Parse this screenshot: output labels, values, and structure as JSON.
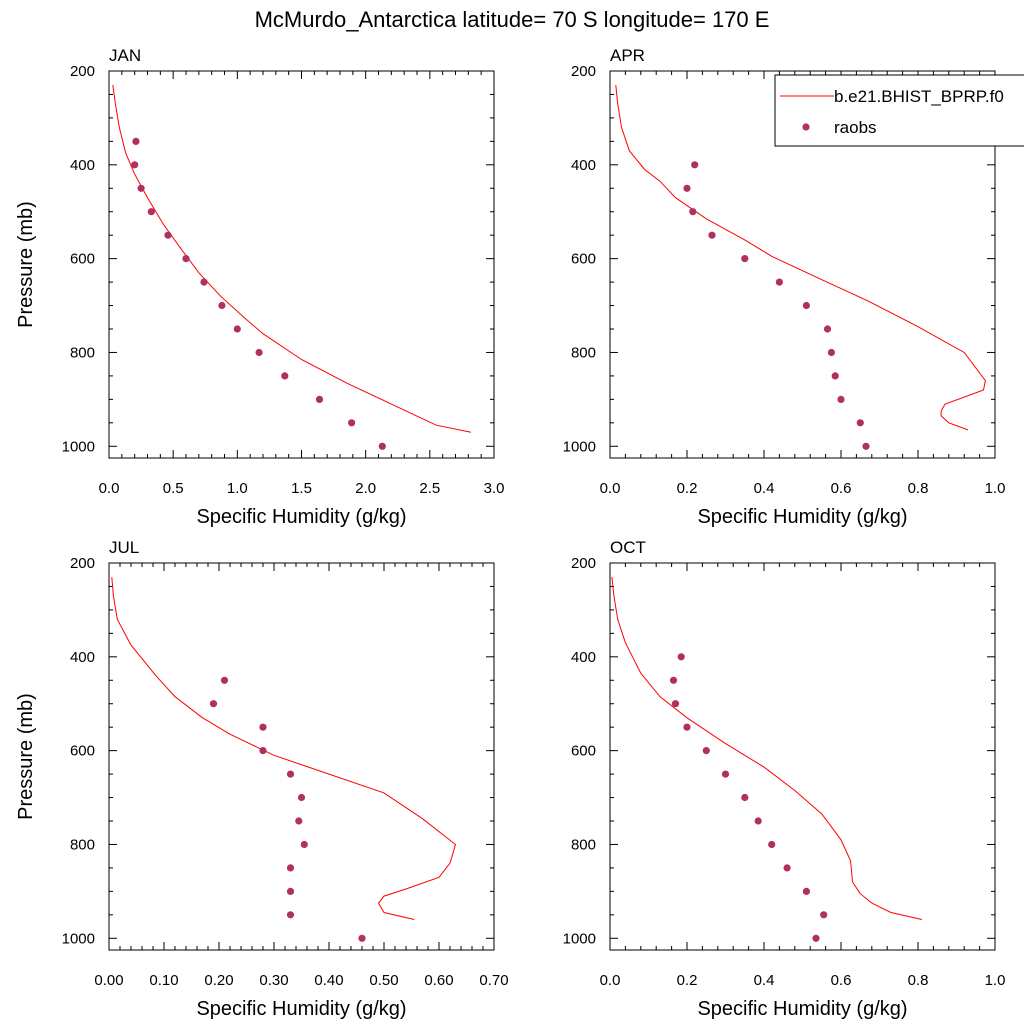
{
  "figure": {
    "title": "McMurdo_Antarctica  latitude= 70 S longitude= 170 E"
  },
  "colors": {
    "model_line": "#ff0000",
    "raobs_marker": "#b03060",
    "axes": "#000000"
  },
  "legend": {
    "placement": "top-right of APR panel",
    "entries": [
      {
        "label": "b.e21.BHIST_BPRP.f0",
        "style": "line"
      },
      {
        "label": "raobs",
        "style": "marker"
      }
    ]
  },
  "chart_data": [
    {
      "type": "line+scatter",
      "title": "JAN",
      "xlabel": "Specific Humidity (g/kg)",
      "ylabel": "Pressure (mb)",
      "xlim": [
        0,
        3.0
      ],
      "ylim": [
        1025,
        200
      ],
      "y_reversed": true,
      "xticks": [
        "0.0",
        "0.5",
        "1.0",
        "1.5",
        "2.0",
        "2.5",
        "3.0"
      ],
      "xtick_values": [
        0,
        0.5,
        1.0,
        1.5,
        2.0,
        2.5,
        3.0
      ],
      "yticks": [
        "200",
        "400",
        "600",
        "800",
        "1000"
      ],
      "ytick_values": [
        200,
        400,
        600,
        800,
        1000
      ],
      "series": [
        {
          "name": "b.e21.BHIST_BPRP.f0",
          "kind": "line",
          "points": [
            [
              0.03,
              230
            ],
            [
              0.05,
              270
            ],
            [
              0.08,
              320
            ],
            [
              0.13,
              375
            ],
            [
              0.2,
              420
            ],
            [
              0.3,
              470
            ],
            [
              0.42,
              525
            ],
            [
              0.55,
              575
            ],
            [
              0.7,
              630
            ],
            [
              0.87,
              680
            ],
            [
              1.05,
              725
            ],
            [
              1.2,
              760
            ],
            [
              1.5,
              815
            ],
            [
              1.85,
              865
            ],
            [
              2.2,
              910
            ],
            [
              2.55,
              955
            ],
            [
              2.82,
              970
            ]
          ]
        },
        {
          "name": "raobs",
          "kind": "scatter",
          "points": [
            [
              0.21,
              350
            ],
            [
              0.2,
              400
            ],
            [
              0.25,
              450
            ],
            [
              0.33,
              500
            ],
            [
              0.46,
              550
            ],
            [
              0.6,
              600
            ],
            [
              0.74,
              650
            ],
            [
              0.88,
              700
            ],
            [
              1.0,
              750
            ],
            [
              1.17,
              800
            ],
            [
              1.37,
              850
            ],
            [
              1.64,
              900
            ],
            [
              1.89,
              950
            ],
            [
              2.13,
              1000
            ]
          ]
        }
      ]
    },
    {
      "type": "line+scatter",
      "title": "APR",
      "xlabel": "Specific Humidity (g/kg)",
      "ylabel": "",
      "xlim": [
        0,
        1.0
      ],
      "ylim": [
        1025,
        200
      ],
      "y_reversed": true,
      "xticks": [
        "0.0",
        "0.2",
        "0.4",
        "0.6",
        "0.8",
        "1.0"
      ],
      "xtick_values": [
        0,
        0.2,
        0.4,
        0.6,
        0.8,
        1.0
      ],
      "yticks": [
        "200",
        "400",
        "600",
        "800",
        "1000"
      ],
      "ytick_values": [
        200,
        400,
        600,
        800,
        1000
      ],
      "series": [
        {
          "name": "b.e21.BHIST_BPRP.f0",
          "kind": "line",
          "points": [
            [
              0.015,
              230
            ],
            [
              0.02,
              270
            ],
            [
              0.03,
              320
            ],
            [
              0.05,
              370
            ],
            [
              0.09,
              410
            ],
            [
              0.13,
              435
            ],
            [
              0.17,
              470
            ],
            [
              0.25,
              515
            ],
            [
              0.35,
              560
            ],
            [
              0.42,
              595
            ],
            [
              0.55,
              645
            ],
            [
              0.67,
              690
            ],
            [
              0.8,
              745
            ],
            [
              0.92,
              800
            ],
            [
              0.975,
              860
            ],
            [
              0.97,
              880
            ],
            [
              0.87,
              910
            ],
            [
              0.86,
              925
            ],
            [
              0.86,
              935
            ],
            [
              0.88,
              950
            ],
            [
              0.93,
              965
            ]
          ]
        },
        {
          "name": "raobs",
          "kind": "scatter",
          "points": [
            [
              0.22,
              400
            ],
            [
              0.2,
              450
            ],
            [
              0.215,
              500
            ],
            [
              0.265,
              550
            ],
            [
              0.35,
              600
            ],
            [
              0.44,
              650
            ],
            [
              0.51,
              700
            ],
            [
              0.565,
              750
            ],
            [
              0.575,
              800
            ],
            [
              0.585,
              850
            ],
            [
              0.6,
              900
            ],
            [
              0.65,
              950
            ],
            [
              0.665,
              1000
            ]
          ]
        }
      ]
    },
    {
      "type": "line+scatter",
      "title": "JUL",
      "xlabel": "Specific Humidity (g/kg)",
      "ylabel": "Pressure (mb)",
      "xlim": [
        0,
        0.7
      ],
      "ylim": [
        1025,
        200
      ],
      "y_reversed": true,
      "xticks": [
        "0.00",
        "0.10",
        "0.20",
        "0.30",
        "0.40",
        "0.50",
        "0.60",
        "0.70"
      ],
      "xtick_values": [
        0,
        0.1,
        0.2,
        0.3,
        0.4,
        0.5,
        0.6,
        0.7
      ],
      "yticks": [
        "200",
        "400",
        "600",
        "800",
        "1000"
      ],
      "ytick_values": [
        200,
        400,
        600,
        800,
        1000
      ],
      "series": [
        {
          "name": "b.e21.BHIST_BPRP.f0",
          "kind": "line",
          "points": [
            [
              0.005,
              230
            ],
            [
              0.008,
              270
            ],
            [
              0.015,
              320
            ],
            [
              0.04,
              375
            ],
            [
              0.085,
              440
            ],
            [
              0.12,
              485
            ],
            [
              0.17,
              530
            ],
            [
              0.22,
              565
            ],
            [
              0.3,
              610
            ],
            [
              0.4,
              650
            ],
            [
              0.5,
              690
            ],
            [
              0.57,
              745
            ],
            [
              0.63,
              800
            ],
            [
              0.62,
              840
            ],
            [
              0.6,
              870
            ],
            [
              0.54,
              895
            ],
            [
              0.5,
              910
            ],
            [
              0.49,
              925
            ],
            [
              0.5,
              945
            ],
            [
              0.555,
              960
            ]
          ]
        },
        {
          "name": "raobs",
          "kind": "scatter",
          "points": [
            [
              0.21,
              450
            ],
            [
              0.19,
              500
            ],
            [
              0.28,
              550
            ],
            [
              0.28,
              600
            ],
            [
              0.33,
              650
            ],
            [
              0.35,
              700
            ],
            [
              0.345,
              750
            ],
            [
              0.355,
              800
            ],
            [
              0.33,
              850
            ],
            [
              0.33,
              900
            ],
            [
              0.33,
              950
            ],
            [
              0.46,
              1000
            ]
          ]
        }
      ]
    },
    {
      "type": "line+scatter",
      "title": "OCT",
      "xlabel": "Specific Humidity (g/kg)",
      "ylabel": "",
      "xlim": [
        0,
        1.0
      ],
      "ylim": [
        1025,
        200
      ],
      "y_reversed": true,
      "xticks": [
        "0.0",
        "0.2",
        "0.4",
        "0.6",
        "0.8",
        "1.0"
      ],
      "xtick_values": [
        0,
        0.2,
        0.4,
        0.6,
        0.8,
        1.0
      ],
      "yticks": [
        "200",
        "400",
        "600",
        "800",
        "1000"
      ],
      "ytick_values": [
        200,
        400,
        600,
        800,
        1000
      ],
      "series": [
        {
          "name": "b.e21.BHIST_BPRP.f0",
          "kind": "line",
          "points": [
            [
              0.005,
              230
            ],
            [
              0.01,
              270
            ],
            [
              0.02,
              320
            ],
            [
              0.04,
              370
            ],
            [
              0.08,
              435
            ],
            [
              0.13,
              485
            ],
            [
              0.2,
              530
            ],
            [
              0.3,
              585
            ],
            [
              0.4,
              635
            ],
            [
              0.48,
              685
            ],
            [
              0.55,
              735
            ],
            [
              0.6,
              790
            ],
            [
              0.625,
              835
            ],
            [
              0.63,
              880
            ],
            [
              0.65,
              905
            ],
            [
              0.68,
              925
            ],
            [
              0.73,
              945
            ],
            [
              0.81,
              960
            ]
          ]
        },
        {
          "name": "raobs",
          "kind": "scatter",
          "points": [
            [
              0.185,
              400
            ],
            [
              0.165,
              450
            ],
            [
              0.17,
              500
            ],
            [
              0.2,
              550
            ],
            [
              0.25,
              600
            ],
            [
              0.3,
              650
            ],
            [
              0.35,
              700
            ],
            [
              0.385,
              750
            ],
            [
              0.42,
              800
            ],
            [
              0.46,
              850
            ],
            [
              0.51,
              900
            ],
            [
              0.555,
              950
            ],
            [
              0.535,
              1000
            ]
          ]
        }
      ]
    }
  ]
}
